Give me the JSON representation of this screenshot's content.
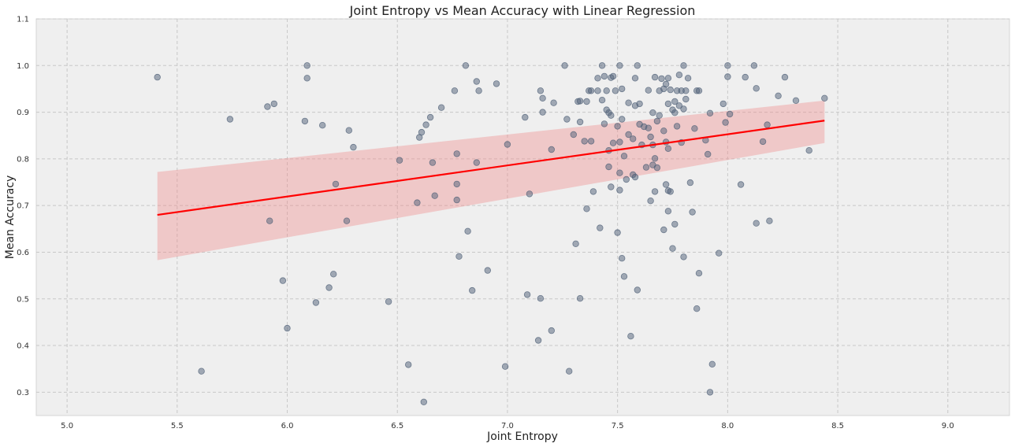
{
  "chart_data": {
    "type": "scatter",
    "title": "Joint Entropy vs Mean Accuracy with Linear Regression",
    "xlabel": "Joint Entropy",
    "ylabel": "Mean Accuracy",
    "xlim": [
      4.86,
      9.28
    ],
    "ylim": [
      0.25,
      1.1
    ],
    "xticks": [
      "5.0",
      "5.5",
      "6.0",
      "6.5",
      "7.0",
      "7.5",
      "8.0",
      "8.5",
      "9.0"
    ],
    "yticks": [
      "0.3",
      "0.4",
      "0.5",
      "0.6",
      "0.7",
      "0.8",
      "0.9",
      "1.0",
      "1.1"
    ],
    "grid": true,
    "point_color": "#4f6077",
    "line_color": "#ff0000",
    "band_color": "#f08080",
    "background": "#efefef",
    "regression": {
      "x": [
        5.41,
        8.44
      ],
      "y": [
        0.68,
        0.882
      ],
      "ci_lower": [
        0.583,
        0.834
      ],
      "ci_upper": [
        0.772,
        0.925
      ]
    },
    "points": [
      [
        5.41,
        0.975
      ],
      [
        5.61,
        0.345
      ],
      [
        5.74,
        0.885
      ],
      [
        5.91,
        0.912
      ],
      [
        5.92,
        0.667
      ],
      [
        5.94,
        0.918
      ],
      [
        5.98,
        0.539
      ],
      [
        6.0,
        0.437
      ],
      [
        6.08,
        0.881
      ],
      [
        6.09,
        1.0
      ],
      [
        6.09,
        0.973
      ],
      [
        6.13,
        0.492
      ],
      [
        6.16,
        0.872
      ],
      [
        6.19,
        0.524
      ],
      [
        6.21,
        0.553
      ],
      [
        6.22,
        0.746
      ],
      [
        6.27,
        0.667
      ],
      [
        6.28,
        0.861
      ],
      [
        6.3,
        0.825
      ],
      [
        6.46,
        0.494
      ],
      [
        6.51,
        0.797
      ],
      [
        6.55,
        0.359
      ],
      [
        6.59,
        0.706
      ],
      [
        6.6,
        0.846
      ],
      [
        6.61,
        0.857
      ],
      [
        6.62,
        0.279
      ],
      [
        6.63,
        0.873
      ],
      [
        6.65,
        0.889
      ],
      [
        6.66,
        0.792
      ],
      [
        6.67,
        0.721
      ],
      [
        6.7,
        0.91
      ],
      [
        6.76,
        0.946
      ],
      [
        6.77,
        0.712
      ],
      [
        6.77,
        0.746
      ],
      [
        6.77,
        0.811
      ],
      [
        6.78,
        0.591
      ],
      [
        6.81,
        1.0
      ],
      [
        6.82,
        0.645
      ],
      [
        6.84,
        0.518
      ],
      [
        6.86,
        0.966
      ],
      [
        6.86,
        0.792
      ],
      [
        6.87,
        0.946
      ],
      [
        6.91,
        0.561
      ],
      [
        6.95,
        0.961
      ],
      [
        6.99,
        0.355
      ],
      [
        7.0,
        0.831
      ],
      [
        7.08,
        0.889
      ],
      [
        7.09,
        0.509
      ],
      [
        7.1,
        0.725
      ],
      [
        7.14,
        0.411
      ],
      [
        7.15,
        0.946
      ],
      [
        7.15,
        0.501
      ],
      [
        7.16,
        0.93
      ],
      [
        7.16,
        0.9
      ],
      [
        7.2,
        0.82
      ],
      [
        7.2,
        0.432
      ],
      [
        7.21,
        0.92
      ],
      [
        7.26,
        1.0
      ],
      [
        7.27,
        0.885
      ],
      [
        7.28,
        0.345
      ],
      [
        7.3,
        0.852
      ],
      [
        7.31,
        0.618
      ],
      [
        7.32,
        0.923
      ],
      [
        7.33,
        0.879
      ],
      [
        7.33,
        0.501
      ],
      [
        7.33,
        0.924
      ],
      [
        7.35,
        0.838
      ],
      [
        7.36,
        0.923
      ],
      [
        7.36,
        0.693
      ],
      [
        7.37,
        0.946
      ],
      [
        7.38,
        0.946
      ],
      [
        7.38,
        0.838
      ],
      [
        7.39,
        0.73
      ],
      [
        7.41,
        0.946
      ],
      [
        7.41,
        0.973
      ],
      [
        7.42,
        0.652
      ],
      [
        7.43,
        0.926
      ],
      [
        7.43,
        1.0
      ],
      [
        7.44,
        0.977
      ],
      [
        7.44,
        0.875
      ],
      [
        7.45,
        0.946
      ],
      [
        7.45,
        0.905
      ],
      [
        7.46,
        0.899
      ],
      [
        7.46,
        0.818
      ],
      [
        7.46,
        0.783
      ],
      [
        7.47,
        0.893
      ],
      [
        7.47,
        0.974
      ],
      [
        7.47,
        0.74
      ],
      [
        7.48,
        0.834
      ],
      [
        7.48,
        0.977
      ],
      [
        7.49,
        0.946
      ],
      [
        7.5,
        0.642
      ],
      [
        7.5,
        0.87
      ],
      [
        7.51,
        0.836
      ],
      [
        7.51,
        1.0
      ],
      [
        7.51,
        0.77
      ],
      [
        7.51,
        0.733
      ],
      [
        7.52,
        0.95
      ],
      [
        7.52,
        0.587
      ],
      [
        7.52,
        0.885
      ],
      [
        7.53,
        0.548
      ],
      [
        7.53,
        0.806
      ],
      [
        7.54,
        0.756
      ],
      [
        7.55,
        0.92
      ],
      [
        7.55,
        0.852
      ],
      [
        7.56,
        0.42
      ],
      [
        7.57,
        0.843
      ],
      [
        7.57,
        0.766
      ],
      [
        7.58,
        0.973
      ],
      [
        7.58,
        0.914
      ],
      [
        7.58,
        0.761
      ],
      [
        7.59,
        1.0
      ],
      [
        7.59,
        0.519
      ],
      [
        7.6,
        0.918
      ],
      [
        7.6,
        0.874
      ],
      [
        7.61,
        0.83
      ],
      [
        7.62,
        0.869
      ],
      [
        7.63,
        0.782
      ],
      [
        7.64,
        0.947
      ],
      [
        7.64,
        0.866
      ],
      [
        7.65,
        0.847
      ],
      [
        7.65,
        0.71
      ],
      [
        7.66,
        0.83
      ],
      [
        7.66,
        0.787
      ],
      [
        7.66,
        0.899
      ],
      [
        7.67,
        0.801
      ],
      [
        7.67,
        0.73
      ],
      [
        7.67,
        0.975
      ],
      [
        7.68,
        0.881
      ],
      [
        7.68,
        0.781
      ],
      [
        7.69,
        0.893
      ],
      [
        7.69,
        0.946
      ],
      [
        7.7,
        0.972
      ],
      [
        7.71,
        0.95
      ],
      [
        7.71,
        0.86
      ],
      [
        7.71,
        0.648
      ],
      [
        7.72,
        0.96
      ],
      [
        7.72,
        0.836
      ],
      [
        7.72,
        0.745
      ],
      [
        7.73,
        0.973
      ],
      [
        7.73,
        0.918
      ],
      [
        7.73,
        0.822
      ],
      [
        7.73,
        0.732
      ],
      [
        7.73,
        0.688
      ],
      [
        7.74,
        0.948
      ],
      [
        7.74,
        0.73
      ],
      [
        7.75,
        0.608
      ],
      [
        7.75,
        0.905
      ],
      [
        7.76,
        0.923
      ],
      [
        7.76,
        0.899
      ],
      [
        7.76,
        0.66
      ],
      [
        7.77,
        0.946
      ],
      [
        7.77,
        0.87
      ],
      [
        7.78,
        0.98
      ],
      [
        7.78,
        0.914
      ],
      [
        7.79,
        0.946
      ],
      [
        7.79,
        0.835
      ],
      [
        7.8,
        1.0
      ],
      [
        7.8,
        0.907
      ],
      [
        7.8,
        0.59
      ],
      [
        7.81,
        0.928
      ],
      [
        7.81,
        0.946
      ],
      [
        7.82,
        0.973
      ],
      [
        7.83,
        0.749
      ],
      [
        7.84,
        0.686
      ],
      [
        7.85,
        0.865
      ],
      [
        7.86,
        0.946
      ],
      [
        7.86,
        0.479
      ],
      [
        7.87,
        0.946
      ],
      [
        7.87,
        0.555
      ],
      [
        7.9,
        0.84
      ],
      [
        7.91,
        0.81
      ],
      [
        7.92,
        0.898
      ],
      [
        7.92,
        0.3
      ],
      [
        7.93,
        0.36
      ],
      [
        7.96,
        0.598
      ],
      [
        7.98,
        0.918
      ],
      [
        7.99,
        0.878
      ],
      [
        8.0,
        1.0
      ],
      [
        8.0,
        0.976
      ],
      [
        8.01,
        0.896
      ],
      [
        8.06,
        0.745
      ],
      [
        8.08,
        0.975
      ],
      [
        8.12,
        1.0
      ],
      [
        8.13,
        0.951
      ],
      [
        8.13,
        0.662
      ],
      [
        8.16,
        0.837
      ],
      [
        8.18,
        0.873
      ],
      [
        8.19,
        0.667
      ],
      [
        8.23,
        0.935
      ],
      [
        8.26,
        0.975
      ],
      [
        8.31,
        0.925
      ],
      [
        8.37,
        0.818
      ],
      [
        8.44,
        0.93
      ]
    ]
  }
}
